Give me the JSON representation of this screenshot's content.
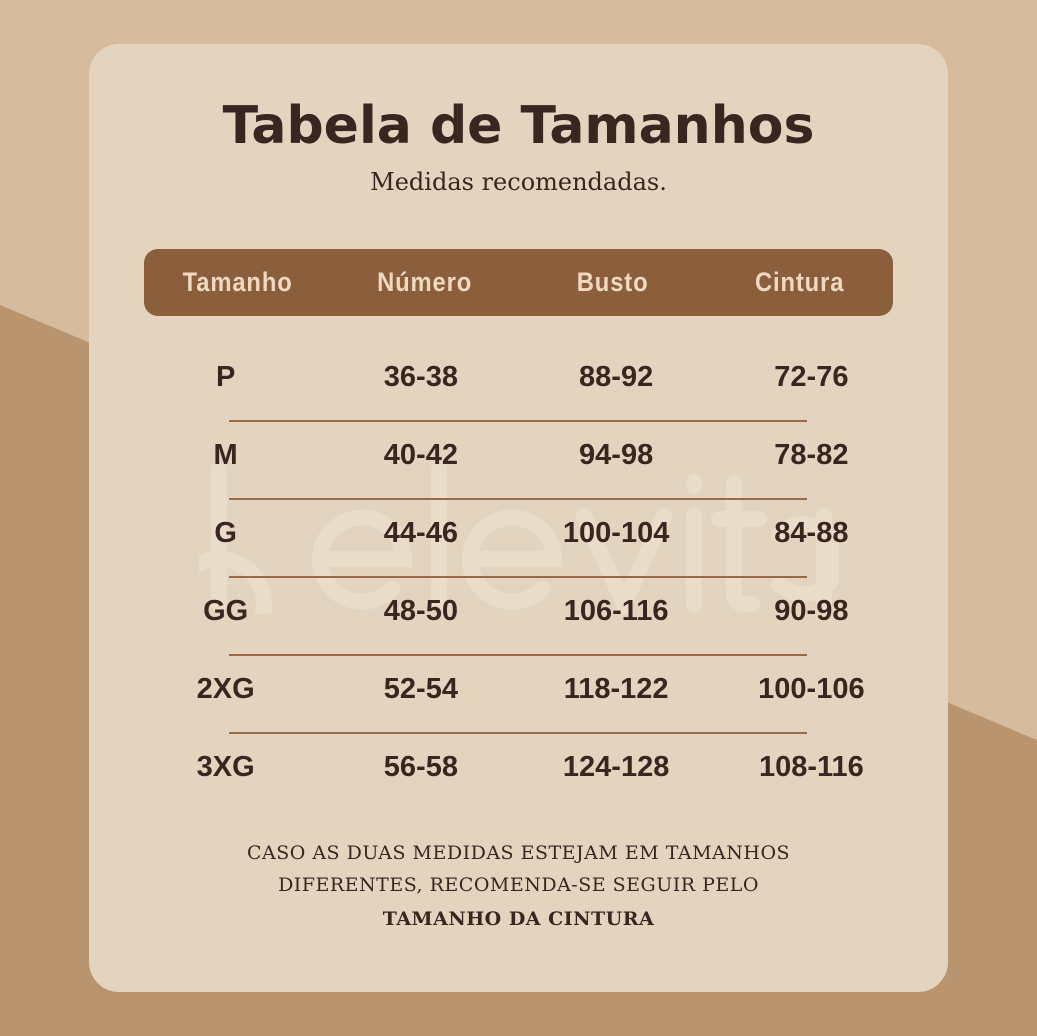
{
  "watermark": "belevita",
  "title": "Tabela de Tamanhos",
  "subtitle": "Medidas recomendadas.",
  "table": {
    "headers": [
      "Tamanho",
      "Número",
      "Busto",
      "Cintura"
    ],
    "rows": [
      [
        "P",
        "36-38",
        "88-92",
        "72-76"
      ],
      [
        "M",
        "40-42",
        "94-98",
        "78-82"
      ],
      [
        "G",
        "44-46",
        "100-104",
        "84-88"
      ],
      [
        "GG",
        "48-50",
        "106-116",
        "90-98"
      ],
      [
        "2XG",
        "52-54",
        "118-122",
        "100-106"
      ],
      [
        "3XG",
        "56-58",
        "124-128",
        "108-116"
      ]
    ]
  },
  "note": {
    "line1": "CASO AS DUAS MEDIDAS ESTEJAM EM TAMANHOS",
    "line2": "DIFERENTES, RECOMENDA-SE SEGUIR PELO",
    "line3": "TAMANHO DA CINTURA"
  },
  "colors": {
    "background_light": "#d6bb9d",
    "background_dark": "#b8956f",
    "card": "#e3d4bf",
    "header": "#8b5e3c",
    "text": "#3a2520"
  }
}
